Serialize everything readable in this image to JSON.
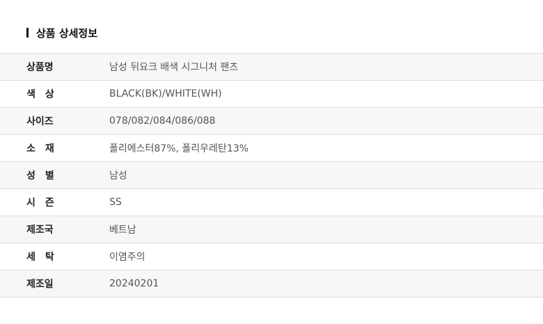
{
  "section_title": "상품 상세정보",
  "rows": [
    {
      "label": "상품명",
      "value": "남성 뒤요크 배색 시그니처 팬츠"
    },
    {
      "label": "색　상",
      "value": "BLACK(BK)/WHITE(WH)"
    },
    {
      "label": "사이즈",
      "value": "078/082/084/086/088"
    },
    {
      "label": "소　재",
      "value": "폴리에스터87%, 폴리우레탄13%"
    },
    {
      "label": "성　별",
      "value": "남성"
    },
    {
      "label": "시　즌",
      "value": "SS"
    },
    {
      "label": "제조국",
      "value": "베트남"
    },
    {
      "label": "세　탁",
      "value": "이염주의"
    },
    {
      "label": "제조일",
      "value": "20240201"
    }
  ]
}
